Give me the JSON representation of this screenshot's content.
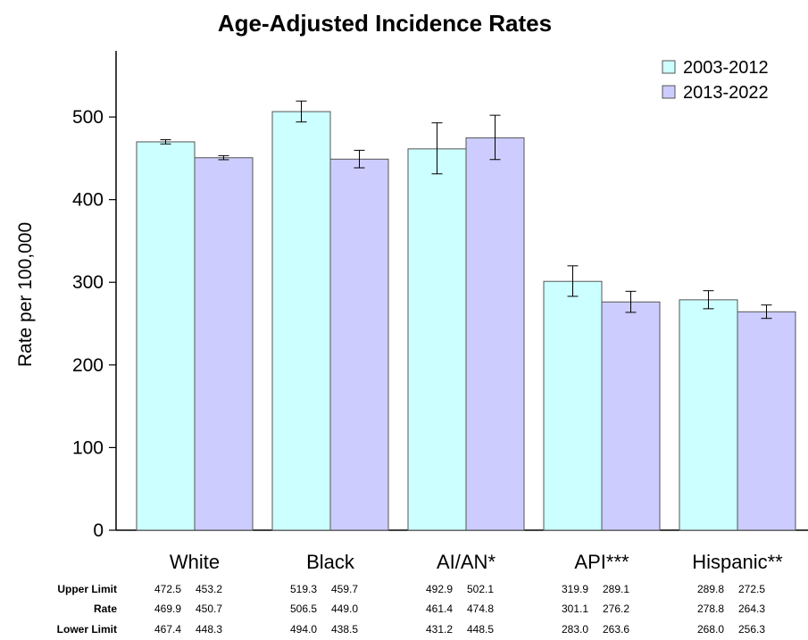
{
  "chart_data": {
    "type": "bar",
    "title": "Age-Adjusted Incidence Rates",
    "ylabel": "Rate per 100,000",
    "xlabel": "",
    "ylim": [
      0,
      580
    ],
    "yticks": [
      0,
      100,
      200,
      300,
      400,
      500
    ],
    "grid": false,
    "legend_position": "top-right",
    "categories": [
      "White",
      "Black",
      "AI/AN*",
      "API***",
      "Hispanic**"
    ],
    "series": [
      {
        "name": "2003-2012",
        "color": "#ccffff",
        "values": [
          469.9,
          506.5,
          461.4,
          301.1,
          278.8
        ],
        "upper": [
          472.5,
          519.3,
          492.9,
          319.9,
          289.8
        ],
        "lower": [
          467.4,
          494.0,
          431.2,
          283.0,
          268.0
        ]
      },
      {
        "name": "2013-2022",
        "color": "#ccccff",
        "values": [
          450.7,
          449.0,
          474.8,
          276.2,
          264.3
        ],
        "upper": [
          453.2,
          459.7,
          502.1,
          289.1,
          272.5
        ],
        "lower": [
          448.3,
          438.5,
          448.5,
          263.6,
          256.3
        ]
      }
    ],
    "table": {
      "row_labels": [
        "Upper Limit",
        "Rate",
        "Lower Limit"
      ],
      "rows": [
        [
          "472.5",
          "453.2",
          "519.3",
          "459.7",
          "492.9",
          "502.1",
          "319.9",
          "289.1",
          "289.8",
          "272.5"
        ],
        [
          "469.9",
          "450.7",
          "506.5",
          "449.0",
          "461.4",
          "474.8",
          "301.1",
          "276.2",
          "278.8",
          "264.3"
        ],
        [
          "467.4",
          "448.3",
          "494.0",
          "438.5",
          "431.2",
          "448.5",
          "283.0",
          "263.6",
          "268.0",
          "256.3"
        ]
      ]
    }
  }
}
